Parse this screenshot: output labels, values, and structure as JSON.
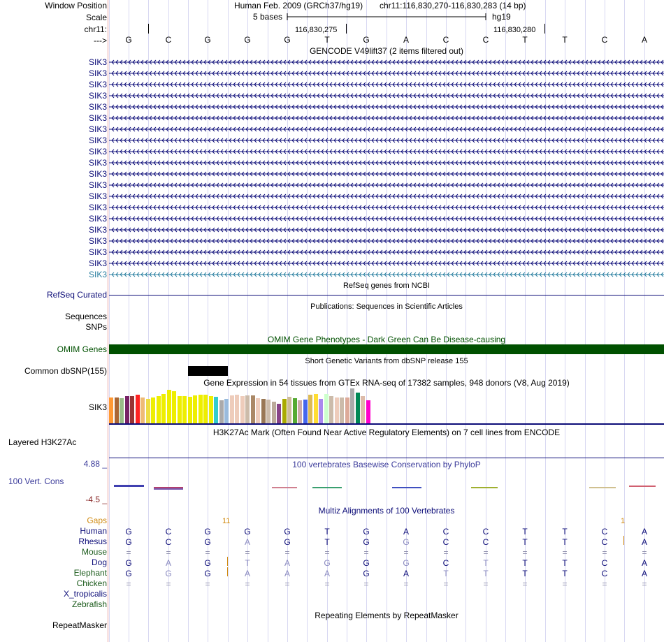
{
  "position": {
    "window_label": "Window Position",
    "assembly": "Human Feb. 2009 (GRCh37/hg19)",
    "coords": "chr11:116,830,270-116,830,283 (14 bp)",
    "scale_label": "Scale",
    "scale_text": "5 bases",
    "scale_db": "hg19",
    "chrom_label": "chr11:",
    "pos1": "116,830,275",
    "pos2": "116,830,280",
    "strand_label": "--->"
  },
  "sequence": [
    "G",
    "C",
    "G",
    "G",
    "G",
    "T",
    "G",
    "A",
    "C",
    "C",
    "T",
    "T",
    "C",
    "A"
  ],
  "gencode": {
    "title": "GENCODE V49lift37 (2 items filtered out)",
    "gene_label": "SIK3",
    "row_count": 20,
    "dark_color": "#0c0c78",
    "last_color": "#2a7fa0"
  },
  "refseq": {
    "title": "RefSeq genes from NCBI",
    "label": "RefSeq Curated"
  },
  "publications": {
    "title": "Publications: Sequences in Scientific Articles",
    "label": "Sequences"
  },
  "snps": {
    "label": "SNPs"
  },
  "omim": {
    "title": "OMIM Gene Phenotypes - Dark Green Can Be Disease-causing",
    "label": "OMIM Genes",
    "color": "#005000"
  },
  "dbsnp": {
    "title": "Short Genetic Variants from dbSNP release 155",
    "label": "Common dbSNP(155)"
  },
  "gtex": {
    "title": "Gene Expression in 54 tissues from GTEx RNA-seq of 17382 samples, 948 donors (V8, Aug 2019)",
    "label": "SIK3",
    "bars": [
      {
        "c": "#ff9933",
        "v": 0.74
      },
      {
        "c": "#aa6633",
        "v": 0.74
      },
      {
        "c": "#99bb88",
        "v": 0.72
      },
      {
        "c": "#772266",
        "v": 0.78
      },
      {
        "c": "#993333",
        "v": 0.78
      },
      {
        "c": "#ff2222",
        "v": 0.82
      },
      {
        "c": "#eebb77",
        "v": 0.74
      },
      {
        "c": "#eedd44",
        "v": 0.7
      },
      {
        "c": "#eeee00",
        "v": 0.74
      },
      {
        "c": "#eeee00",
        "v": 0.78
      },
      {
        "c": "#eeee00",
        "v": 0.84
      },
      {
        "c": "#eeee00",
        "v": 0.96
      },
      {
        "c": "#eeee00",
        "v": 0.92
      },
      {
        "c": "#eeee00",
        "v": 0.78
      },
      {
        "c": "#eeee00",
        "v": 0.78
      },
      {
        "c": "#eeee00",
        "v": 0.76
      },
      {
        "c": "#eeee00",
        "v": 0.8
      },
      {
        "c": "#eeee00",
        "v": 0.82
      },
      {
        "c": "#eeee00",
        "v": 0.82
      },
      {
        "c": "#eeee00",
        "v": 0.78
      },
      {
        "c": "#33cccc",
        "v": 0.76
      },
      {
        "c": "#aaaaaa",
        "v": 0.66
      },
      {
        "c": "#99bbdd",
        "v": 0.7
      },
      {
        "c": "#eeccbb",
        "v": 0.8
      },
      {
        "c": "#eeccbb",
        "v": 0.82
      },
      {
        "c": "#eeccbb",
        "v": 0.78
      },
      {
        "c": "#ccbbaa",
        "v": 0.8
      },
      {
        "c": "#aa8866",
        "v": 0.8
      },
      {
        "c": "#eeccbb",
        "v": 0.72
      },
      {
        "c": "#997755",
        "v": 0.7
      },
      {
        "c": "#ccbbaa",
        "v": 0.68
      },
      {
        "c": "#bbaa99",
        "v": 0.62
      },
      {
        "c": "#884488",
        "v": 0.56
      },
      {
        "c": "#aaaa00",
        "v": 0.7
      },
      {
        "c": "#ccbb99",
        "v": 0.76
      },
      {
        "c": "#55aa33",
        "v": 0.72
      },
      {
        "c": "#ccaaaa",
        "v": 0.66
      },
      {
        "c": "#4466ee",
        "v": 0.68
      },
      {
        "c": "#ddbb55",
        "v": 0.82
      },
      {
        "c": "#ffdd33",
        "v": 0.84
      },
      {
        "c": "#aa88ee",
        "v": 0.7
      },
      {
        "c": "#ccffcc",
        "v": 0.84
      },
      {
        "c": "#ccbbaa",
        "v": 0.78
      },
      {
        "c": "#eeccbb",
        "v": 0.74
      },
      {
        "c": "#ccbbaa",
        "v": 0.74
      },
      {
        "c": "#ddaa99",
        "v": 0.74
      },
      {
        "c": "#aaaaaa",
        "v": 1.0
      },
      {
        "c": "#008855",
        "v": 0.88
      },
      {
        "c": "#ddbbaa",
        "v": 0.78
      },
      {
        "c": "#ff00cc",
        "v": 0.66
      }
    ]
  },
  "h3k27ac": {
    "title": "H3K27Ac Mark (Often Found Near Active Regulatory Elements) on 7 cell lines from ENCODE",
    "label": "Layered H3K27Ac"
  },
  "phylop": {
    "title": "100 vertebrates Basewise Conservation by PhyloP",
    "label": "100 Vert. Cons",
    "max": "4.88 _",
    "min": "-4.5 _"
  },
  "multiz": {
    "title": "Multiz Alignments of 100 Vertebrates",
    "gaps_label": "Gaps",
    "gap_marks": [
      "11",
      "1"
    ],
    "species": [
      {
        "name": "Human",
        "color": "#0c0c78",
        "seq": [
          "G",
          "C",
          "G",
          "G",
          "G",
          "T",
          "G",
          "A",
          "C",
          "C",
          "T",
          "T",
          "C",
          "A"
        ]
      },
      {
        "name": "Rhesus",
        "color": "#0c0c78",
        "seq": [
          "G",
          "C",
          "G",
          "A",
          "G",
          "T",
          "G",
          "G",
          "C",
          "C",
          "T",
          "T",
          "C",
          "A"
        ]
      },
      {
        "name": "Mouse",
        "color": "#1a5a1a",
        "seq": [
          "=",
          "=",
          "=",
          "=",
          "=",
          "=",
          "=",
          "=",
          "=",
          "=",
          "=",
          "=",
          "=",
          "="
        ]
      },
      {
        "name": "Dog",
        "color": "#0c0c78",
        "seq": [
          "G",
          "A",
          "G",
          "T",
          "A",
          "G",
          "G",
          "G",
          "C",
          "T",
          "T",
          "T",
          "C",
          "A"
        ]
      },
      {
        "name": "Elephant",
        "color": "#1a5a1a",
        "seq": [
          "G",
          "G",
          "G",
          "A",
          "A",
          "A",
          "G",
          "A",
          "T",
          "T",
          "T",
          "T",
          "C",
          "A"
        ]
      },
      {
        "name": "Chicken",
        "color": "#1a5a1a",
        "seq": [
          "=",
          "=",
          "=",
          "=",
          "=",
          "=",
          "=",
          "=",
          "=",
          "=",
          "=",
          "=",
          "=",
          "="
        ]
      },
      {
        "name": "X_tropicalis",
        "color": "#0c0c78",
        "seq": []
      },
      {
        "name": "Zebrafish",
        "color": "#1a5a1a",
        "seq": []
      }
    ]
  },
  "repeatmasker": {
    "title": "Repeating Elements by RepeatMasker",
    "label": "RepeatMasker"
  }
}
